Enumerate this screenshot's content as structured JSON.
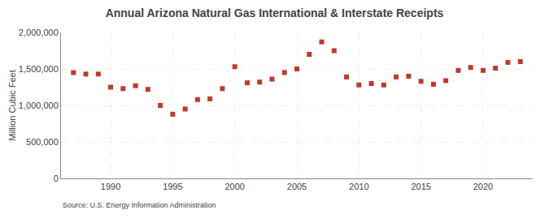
{
  "chart_data": {
    "type": "scatter",
    "title": "Annual Arizona Natural Gas International & Interstate Receipts",
    "ylabel": "Million Cubic Feet",
    "annotations": [
      "Source: U.S. Energy Information Administration"
    ],
    "x": [
      1987,
      1988,
      1989,
      1990,
      1991,
      1992,
      1993,
      1994,
      1995,
      1996,
      1997,
      1998,
      1999,
      2000,
      2001,
      2002,
      2003,
      2004,
      2005,
      2006,
      2007,
      2008,
      2009,
      2010,
      2011,
      2012,
      2013,
      2014,
      2015,
      2016,
      2017,
      2018,
      2019,
      2020,
      2021,
      2022,
      2023
    ],
    "values": [
      1450000,
      1430000,
      1430000,
      1250000,
      1230000,
      1270000,
      1220000,
      1000000,
      880000,
      950000,
      1080000,
      1090000,
      1230000,
      1530000,
      1310000,
      1320000,
      1360000,
      1450000,
      1500000,
      1700000,
      1870000,
      1750000,
      1390000,
      1280000,
      1300000,
      1280000,
      1390000,
      1400000,
      1330000,
      1290000,
      1340000,
      1480000,
      1520000,
      1480000,
      1510000,
      1590000,
      1600000
    ],
    "color": "#c0392b",
    "marker": "square",
    "xlim": [
      1986,
      2024
    ],
    "xticks": [
      1990,
      1995,
      2000,
      2005,
      2010,
      2015,
      2020
    ],
    "ylim": [
      0,
      2000000
    ],
    "yticks": [
      0,
      {
        "value": 500000,
        "label": "500,000"
      },
      {
        "value": 1000000,
        "label": "1,000,000"
      },
      {
        "value": 1500000,
        "label": "1,500,000"
      },
      {
        "value": 2000000,
        "label": "2,000,000"
      }
    ],
    "grid": true
  }
}
